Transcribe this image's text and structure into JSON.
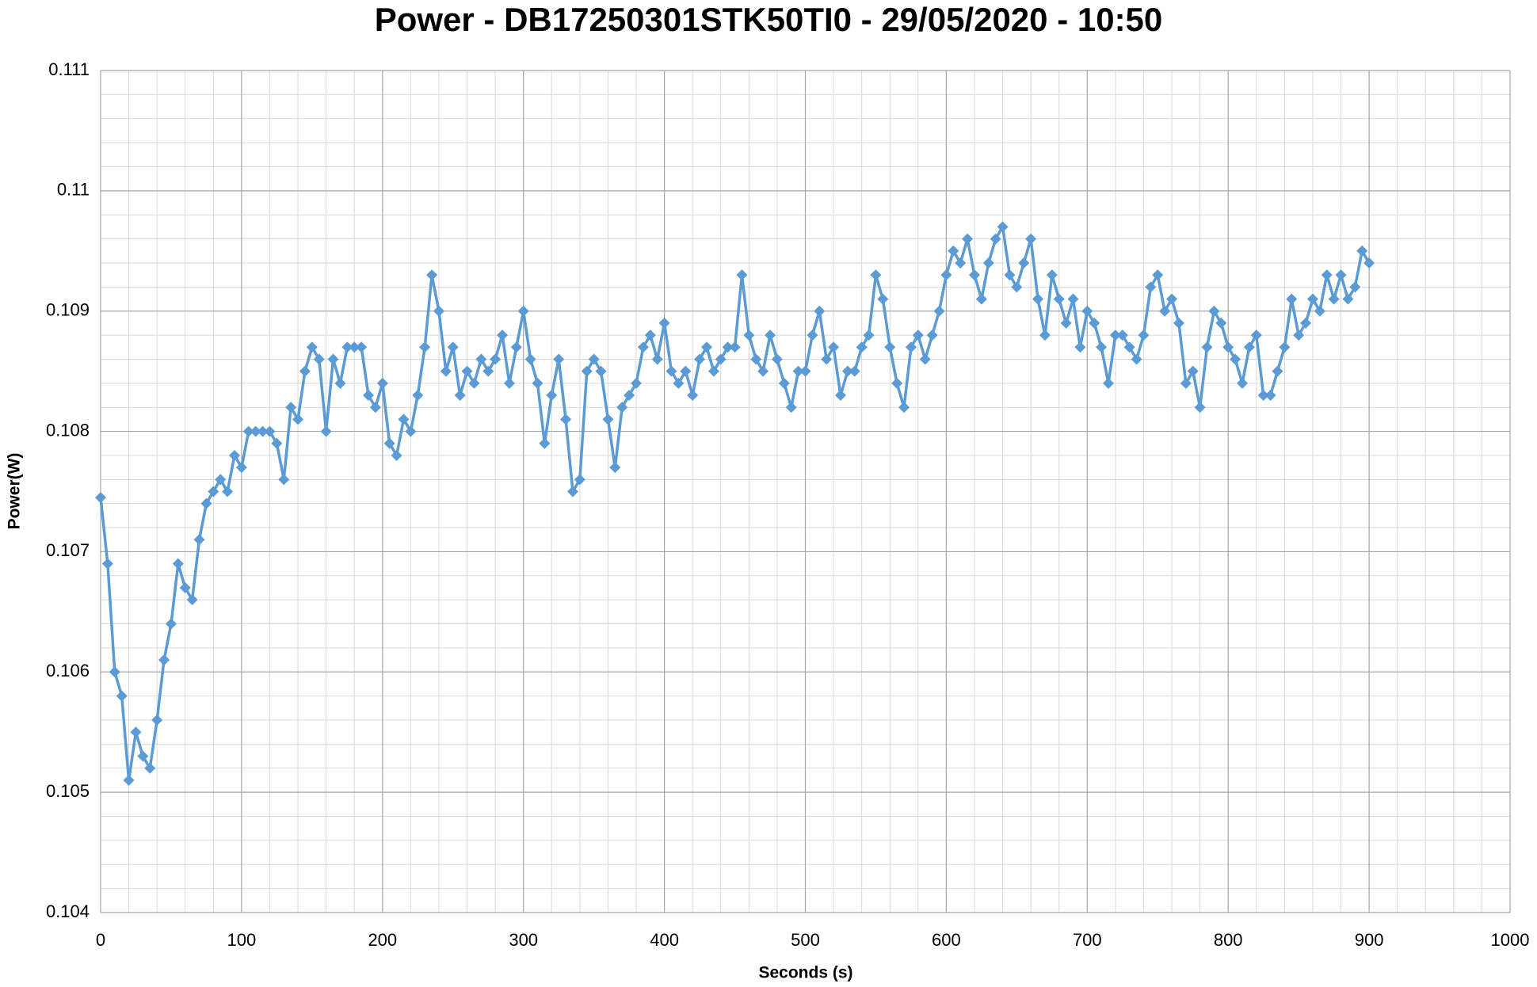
{
  "chart_data": {
    "type": "line",
    "title": "Power - DB17250301STK50TI0 - 29/05/2020 - 10:50",
    "x_label": "Seconds (s)",
    "y_label": "Power(W)",
    "xlim": [
      0,
      1000
    ],
    "xticks": [
      0,
      100,
      200,
      300,
      400,
      500,
      600,
      700,
      800,
      900,
      1000
    ],
    "ylim": [
      0.104,
      0.111
    ],
    "yticks": [
      0.104,
      0.105,
      0.106,
      0.107,
      0.108,
      0.109,
      0.11,
      0.111
    ],
    "grid": true,
    "minor_grid": true,
    "color": "#5b9bd5",
    "marker": "diamond",
    "x": [
      0,
      5,
      10,
      15,
      20,
      25,
      30,
      35,
      40,
      45,
      50,
      55,
      60,
      65,
      70,
      75,
      80,
      85,
      90,
      95,
      100,
      105,
      110,
      115,
      120,
      125,
      130,
      135,
      140,
      145,
      150,
      155,
      160,
      165,
      170,
      175,
      180,
      185,
      190,
      195,
      200,
      205,
      210,
      215,
      220,
      225,
      230,
      235,
      240,
      245,
      250,
      255,
      260,
      265,
      270,
      275,
      280,
      285,
      290,
      295,
      300,
      305,
      310,
      315,
      320,
      325,
      330,
      335,
      340,
      345,
      350,
      355,
      360,
      365,
      370,
      375,
      380,
      385,
      390,
      395,
      400,
      405,
      410,
      415,
      420,
      425,
      430,
      435,
      440,
      445,
      450,
      455,
      460,
      465,
      470,
      475,
      480,
      485,
      490,
      495,
      500,
      505,
      510,
      515,
      520,
      525,
      530,
      535,
      540,
      545,
      550,
      555,
      560,
      565,
      570,
      575,
      580,
      585,
      590,
      595,
      600,
      605,
      610,
      615,
      620,
      625,
      630,
      635,
      640,
      645,
      650,
      655,
      660,
      665,
      670,
      675,
      680,
      685,
      690,
      695,
      700,
      705,
      710,
      715,
      720,
      725,
      730,
      735,
      740,
      745,
      750,
      755,
      760,
      765,
      770,
      775,
      780,
      785,
      790,
      795,
      800,
      805,
      810,
      815,
      820,
      825,
      830,
      835,
      840,
      845,
      850,
      855,
      860,
      865,
      870,
      875,
      880,
      885,
      890,
      895,
      900
    ],
    "values": [
      0.10745,
      0.1069,
      0.106,
      0.1058,
      0.1051,
      0.1055,
      0.1053,
      0.1052,
      0.1056,
      0.1061,
      0.1064,
      0.1069,
      0.1067,
      0.1066,
      0.1071,
      0.1074,
      0.1075,
      0.1076,
      0.1075,
      0.1078,
      0.1077,
      0.108,
      0.108,
      0.108,
      0.108,
      0.1079,
      0.1076,
      0.1082,
      0.1081,
      0.1085,
      0.1087,
      0.1086,
      0.108,
      0.1086,
      0.1084,
      0.1087,
      0.1087,
      0.1087,
      0.1083,
      0.1082,
      0.1084,
      0.1079,
      0.1078,
      0.1081,
      0.108,
      0.1083,
      0.1087,
      0.1093,
      0.109,
      0.1085,
      0.1087,
      0.1083,
      0.1085,
      0.1084,
      0.1086,
      0.1085,
      0.1086,
      0.1088,
      0.1084,
      0.1087,
      0.109,
      0.1086,
      0.1084,
      0.1079,
      0.1083,
      0.1086,
      0.1081,
      0.1075,
      0.1076,
      0.1085,
      0.1086,
      0.1085,
      0.1081,
      0.1077,
      0.1082,
      0.1083,
      0.1084,
      0.1087,
      0.1088,
      0.1086,
      0.1089,
      0.1085,
      0.1084,
      0.1085,
      0.1083,
      0.1086,
      0.1087,
      0.1085,
      0.1086,
      0.1087,
      0.1087,
      0.1093,
      0.1088,
      0.1086,
      0.1085,
      0.1088,
      0.1086,
      0.1084,
      0.1082,
      0.1085,
      0.1085,
      0.1088,
      0.109,
      0.1086,
      0.1087,
      0.1083,
      0.1085,
      0.1085,
      0.1087,
      0.1088,
      0.1093,
      0.1091,
      0.1087,
      0.1084,
      0.1082,
      0.1087,
      0.1088,
      0.1086,
      0.1088,
      0.109,
      0.1093,
      0.1095,
      0.1094,
      0.1096,
      0.1093,
      0.1091,
      0.1094,
      0.1096,
      0.1097,
      0.1093,
      0.1092,
      0.1094,
      0.1096,
      0.1091,
      0.1088,
      0.1093,
      0.1091,
      0.1089,
      0.1091,
      0.1087,
      0.109,
      0.1089,
      0.1087,
      0.1084,
      0.1088,
      0.1088,
      0.1087,
      0.1086,
      0.1088,
      0.1092,
      0.1093,
      0.109,
      0.1091,
      0.1089,
      0.1084,
      0.1085,
      0.1082,
      0.1087,
      0.109,
      0.1089,
      0.1087,
      0.1086,
      0.1084,
      0.1087,
      0.1088,
      0.1083,
      0.1083,
      0.1085,
      0.1087,
      0.1091,
      0.1088,
      0.1089,
      0.1091,
      0.109,
      0.1093,
      0.1091,
      0.1093,
      0.1091,
      0.1092,
      0.1095,
      0.1094
    ]
  }
}
